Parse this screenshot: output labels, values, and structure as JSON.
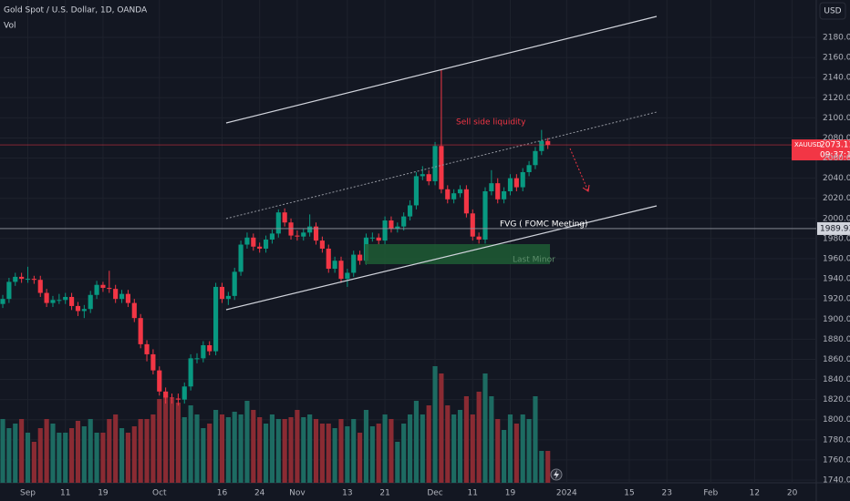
{
  "chart_data": {
    "type": "candlestick",
    "title": "Gold Spot / U.S. Dollar, 1D, OANDA",
    "volume_label": "Vol",
    "currency": "USD",
    "symbol": "XAUUSD",
    "last_price": {
      "value": 2073.11,
      "label": "2073.110"
    },
    "countdown": "09:37:18",
    "level": 1989.935,
    "annotations": [
      "Sell side liquidity",
      "FVG ( FOMC Meeting)",
      "Last Minor"
    ],
    "up_color": "#089981",
    "down_color": "#f23645",
    "volume_up_color": "#1d6b62",
    "volume_down_color": "#8a2b33",
    "xlim": [
      -0.44,
      129.84
    ],
    "ylim": [
      1737.3,
      2217.1
    ],
    "volume_lim": [
      0,
      200
    ],
    "yticks": [
      {
        "value": 1740,
        "label": "1740.000"
      },
      {
        "value": 1760,
        "label": "1760.000"
      },
      {
        "value": 1780,
        "label": "1780.000"
      },
      {
        "value": 1800,
        "label": "1800.000"
      },
      {
        "value": 1820,
        "label": "1820.000"
      },
      {
        "value": 1840,
        "label": "1840.000"
      },
      {
        "value": 1860,
        "label": "1860.000"
      },
      {
        "value": 1880,
        "label": "1880.000"
      },
      {
        "value": 1900,
        "label": "1900.000"
      },
      {
        "value": 1920,
        "label": "1920.000"
      },
      {
        "value": 1940,
        "label": "1940.000"
      },
      {
        "value": 1960,
        "label": "1960.000"
      },
      {
        "value": 1980,
        "label": "1980.000"
      },
      {
        "value": 2000,
        "label": "2000.000"
      },
      {
        "value": 2020,
        "label": "2020.000"
      },
      {
        "value": 2040,
        "label": "2040.000"
      },
      {
        "value": 2060,
        "label": "2060.000"
      },
      {
        "value": 2080,
        "label": "2080.000"
      },
      {
        "value": 2100,
        "label": "2100.000"
      },
      {
        "value": 2120,
        "label": "2120.000"
      },
      {
        "value": 2140,
        "label": "2140.000"
      },
      {
        "value": 2160,
        "label": "2160.000"
      },
      {
        "value": 2180,
        "label": "2180.000"
      }
    ],
    "xticks": [
      {
        "value": 4,
        "label": "Sep"
      },
      {
        "value": 10,
        "label": "11"
      },
      {
        "value": 16,
        "label": "19"
      },
      {
        "value": 25,
        "label": "Oct"
      },
      {
        "value": 35,
        "label": "16"
      },
      {
        "value": 41,
        "label": "24"
      },
      {
        "value": 47,
        "label": "Nov"
      },
      {
        "value": 55,
        "label": "13"
      },
      {
        "value": 61,
        "label": "21"
      },
      {
        "value": 69,
        "label": "Dec"
      },
      {
        "value": 75,
        "label": "11"
      },
      {
        "value": 81,
        "label": "19"
      },
      {
        "value": 90,
        "label": "2024"
      },
      {
        "value": 100,
        "label": "15"
      },
      {
        "value": 106,
        "label": "23"
      },
      {
        "value": 113,
        "label": "Feb"
      },
      {
        "value": 120,
        "label": "12"
      },
      {
        "value": 126,
        "label": "20"
      }
    ],
    "open": [
      1915,
      1920,
      1937,
      1942,
      1940,
      1940,
      1939,
      1926,
      1916,
      1919,
      1919,
      1922,
      1913,
      1908,
      1910,
      1924,
      1934,
      1931,
      1930,
      1920,
      1925,
      1916,
      1901,
      1875,
      1865,
      1849,
      1828,
      1822,
      1821,
      1820,
      1833,
      1861,
      1861,
      1874,
      1868,
      1932,
      1920,
      1923,
      1947,
      1974,
      1981,
      1972,
      1970,
      1979,
      1985,
      2006,
      1996,
      1983,
      1982,
      1986,
      1992,
      1978,
      1970,
      1950,
      1958,
      1940,
      1946,
      1964,
      1958,
      1981,
      1981,
      1978,
      1998,
      1990,
      1992,
      2002,
      2013,
      2042,
      2044,
      2037,
      2072,
      2029,
      2019,
      2025,
      2029,
      2005,
      1982,
      1979,
      2027,
      2035,
      2019,
      2027,
      2040,
      2031,
      2046,
      2053,
      2067,
      2077
    ],
    "high": [
      1924,
      1941,
      1946,
      1946,
      1952,
      1943,
      1943,
      1930,
      1923,
      1925,
      1926,
      1926,
      1917,
      1914,
      1928,
      1938,
      1937,
      1948,
      1934,
      1929,
      1929,
      1920,
      1905,
      1879,
      1870,
      1853,
      1832,
      1826,
      1826,
      1837,
      1865,
      1866,
      1878,
      1878,
      1936,
      1936,
      1927,
      1951,
      1978,
      1986,
      1985,
      1976,
      1983,
      1989,
      2009,
      2010,
      2000,
      1988,
      1990,
      2004,
      1996,
      1982,
      1974,
      1962,
      1962,
      1950,
      1968,
      1968,
      1985,
      1986,
      1985,
      2002,
      2002,
      1996,
      2006,
      2018,
      2046,
      2052,
      2048,
      2076,
      2148,
      2033,
      2029,
      2033,
      2033,
      2009,
      1986,
      2031,
      2048,
      2040,
      2031,
      2044,
      2044,
      2050,
      2057,
      2071,
      2088,
      2080
    ],
    "low": [
      1911,
      1916,
      1933,
      1936,
      1936,
      1935,
      1922,
      1912,
      1912,
      1915,
      1915,
      1909,
      1903,
      1901,
      1906,
      1920,
      1927,
      1926,
      1916,
      1916,
      1912,
      1897,
      1871,
      1858,
      1845,
      1824,
      1816,
      1816,
      1814,
      1816,
      1829,
      1856,
      1857,
      1864,
      1864,
      1916,
      1914,
      1919,
      1943,
      1970,
      1968,
      1966,
      1966,
      1975,
      1981,
      1992,
      1979,
      1978,
      1978,
      1982,
      1974,
      1966,
      1946,
      1946,
      1936,
      1932,
      1942,
      1954,
      1954,
      1977,
      1974,
      1974,
      1986,
      1986,
      1988,
      1998,
      2009,
      2038,
      2033,
      2033,
      2025,
      2015,
      2015,
      2021,
      2001,
      1978,
      1975,
      1975,
      2023,
      2015,
      2015,
      2023,
      2027,
      2027,
      2042,
      2049,
      2063,
      2069
    ],
    "close": [
      1920,
      1937,
      1942,
      1940,
      1940,
      1939,
      1926,
      1916,
      1919,
      1919,
      1922,
      1913,
      1908,
      1910,
      1924,
      1934,
      1931,
      1930,
      1920,
      1925,
      1916,
      1901,
      1875,
      1865,
      1849,
      1828,
      1822,
      1821,
      1820,
      1833,
      1861,
      1861,
      1874,
      1868,
      1932,
      1920,
      1923,
      1947,
      1974,
      1981,
      1972,
      1970,
      1979,
      1985,
      2006,
      1996,
      1983,
      1982,
      1986,
      1992,
      1978,
      1970,
      1950,
      1958,
      1940,
      1946,
      1964,
      1958,
      1981,
      1981,
      1978,
      1998,
      1990,
      1992,
      2002,
      2013,
      2042,
      2044,
      2037,
      2072,
      2029,
      2019,
      2025,
      2029,
      2005,
      1982,
      1979,
      2027,
      2035,
      2019,
      2027,
      2040,
      2031,
      2046,
      2053,
      2067,
      2077,
      2073
    ],
    "volume": [
      70,
      60,
      65,
      70,
      55,
      45,
      60,
      70,
      65,
      55,
      55,
      60,
      68,
      62,
      70,
      55,
      55,
      70,
      75,
      60,
      55,
      62,
      70,
      70,
      75,
      92,
      95,
      92,
      88,
      72,
      85,
      75,
      60,
      65,
      80,
      75,
      72,
      78,
      75,
      90,
      80,
      72,
      65,
      75,
      70,
      70,
      72,
      80,
      72,
      75,
      70,
      65,
      65,
      60,
      70,
      62,
      70,
      55,
      80,
      62,
      65,
      75,
      70,
      45,
      65,
      75,
      90,
      75,
      85,
      128,
      120,
      85,
      75,
      80,
      95,
      75,
      100,
      120,
      95,
      70,
      58,
      75,
      65,
      75,
      70,
      95,
      35,
      35
    ]
  }
}
